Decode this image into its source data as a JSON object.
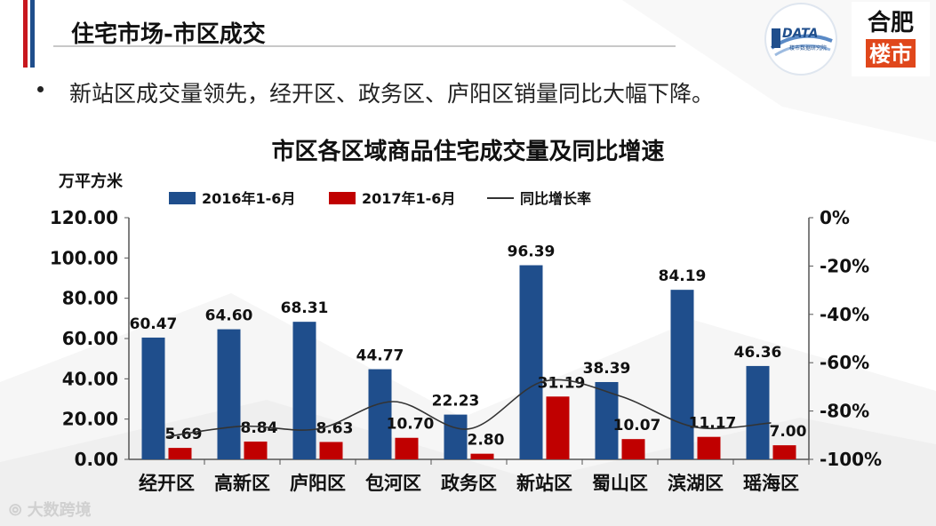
{
  "header": {
    "title": "住宅市场-市区成交"
  },
  "logos": {
    "left_text": "DATA",
    "left_sub": "楼市数据研究院",
    "right_line1": "合肥",
    "right_line2": "楼市"
  },
  "bullet": {
    "text": "新站区成交量领先，经开区、政务区、庐阳区销量同比大幅下降。"
  },
  "watermark": {
    "text": "大数跨境"
  },
  "colors": {
    "series_2016": "#1f4e8c",
    "series_2017": "#c00000",
    "line": "#333333",
    "accent_red": "#c8171e",
    "accent_blue": "#1f4e8c"
  },
  "chart_data": {
    "type": "bar",
    "title": "市区各区域商品住宅成交量及同比增速",
    "ylabel": "万平方米",
    "categories": [
      "经开区",
      "高新区",
      "庐阳区",
      "包河区",
      "政务区",
      "新站区",
      "蜀山区",
      "滨湖区",
      "瑶海区"
    ],
    "series": [
      {
        "name": "2016年1-6月",
        "values": [
          60.47,
          64.6,
          68.31,
          44.77,
          22.23,
          96.39,
          38.39,
          84.19,
          46.36
        ],
        "labels": [
          "60.47",
          "64.60",
          "68.31",
          "44.77",
          "22.23",
          "96.39",
          "38.39",
          "84.19",
          "46.36"
        ]
      },
      {
        "name": "2017年1-6月",
        "values": [
          5.69,
          8.84,
          8.63,
          10.7,
          2.8,
          31.19,
          10.07,
          11.17,
          7.0
        ],
        "labels": [
          "5.69",
          "8.84",
          "8.63",
          "10.70",
          "2.80",
          "31.19",
          "10.07",
          "11.17",
          "7.00"
        ]
      },
      {
        "name": "同比增长率",
        "type": "line",
        "axis": "right",
        "values": [
          -90.6,
          -86.3,
          -87.4,
          -76.1,
          -87.4,
          -67.6,
          -73.8,
          -86.7,
          -84.9
        ]
      }
    ],
    "ylim": [
      0,
      120
    ],
    "yticks": [
      "0.00",
      "20.00",
      "40.00",
      "60.00",
      "80.00",
      "100.00",
      "120.00"
    ],
    "y2lim": [
      -100,
      0
    ],
    "y2ticks": [
      "-100%",
      "-80%",
      "-60%",
      "-40%",
      "-20%",
      "0%"
    ],
    "legend": "top",
    "grid": false
  }
}
